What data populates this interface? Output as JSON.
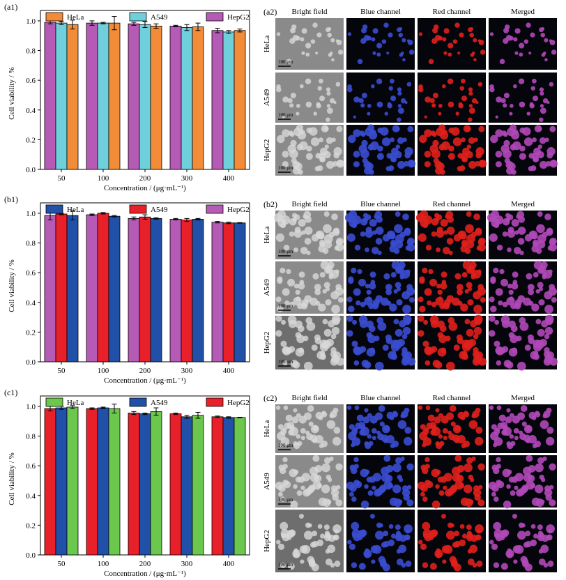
{
  "colors": {
    "orange": "#f28c38",
    "cyan": "#6fd0dc",
    "purple": "#b55bb5",
    "blue": "#2150a8",
    "red": "#e8202a",
    "green": "#6cc84c",
    "micro_bg": "#05050c",
    "bright_bg": "#8a8a8a",
    "blue_cell": "#3a4cd0",
    "red_cell": "#e0201c",
    "merged_cell": "#b048b8"
  },
  "chart_data": [
    {
      "panel": "(a1)",
      "type": "bar",
      "xlabel": "Concentration / (μg·mL⁻¹)",
      "ylabel": "Cell viability / %",
      "categories": [
        "50",
        "100",
        "200",
        "300",
        "400"
      ],
      "ylim": [
        0,
        1.07
      ],
      "yticks": [
        0.0,
        0.2,
        0.4,
        0.6,
        0.8,
        1.0
      ],
      "ytick_labels": [
        "0.0",
        "0.2",
        "0.4",
        "0.6",
        "0.8",
        "1.0"
      ],
      "series_order": [
        "HepG2",
        "A549",
        "HeLa"
      ],
      "legend": [
        {
          "name": "HeLa",
          "color": "#f28c38"
        },
        {
          "name": "A549",
          "color": "#6fd0dc"
        },
        {
          "name": "HepG2",
          "color": "#b55bb5"
        }
      ],
      "series": [
        {
          "name": "HepG2",
          "color": "#b55bb5",
          "values": [
            0.99,
            0.985,
            0.98,
            0.965,
            0.935
          ],
          "errors": [
            0.01,
            0.015,
            0.01,
            0.005,
            0.015
          ]
        },
        {
          "name": "A549",
          "color": "#6fd0dc",
          "values": [
            0.985,
            0.985,
            0.975,
            0.955,
            0.925
          ],
          "errors": [
            0.01,
            0.005,
            0.02,
            0.02,
            0.01
          ]
        },
        {
          "name": "HeLa",
          "color": "#f28c38",
          "values": [
            0.975,
            0.985,
            0.965,
            0.96,
            0.935
          ],
          "errors": [
            0.03,
            0.045,
            0.015,
            0.025,
            0.01
          ]
        }
      ]
    },
    {
      "panel": "(b1)",
      "type": "bar",
      "xlabel": "Concentration / (μg·mL⁻¹)",
      "ylabel": "Cell viability / %",
      "categories": [
        "50",
        "100",
        "200",
        "300",
        "400"
      ],
      "ylim": [
        0,
        1.07
      ],
      "yticks": [
        0.0,
        0.2,
        0.4,
        0.6,
        0.8,
        1.0
      ],
      "ytick_labels": [
        "0.0",
        "0.2",
        "0.4",
        "0.6",
        "0.8",
        "1.0"
      ],
      "series_order": [
        "HepG2",
        "A549",
        "HeLa"
      ],
      "legend": [
        {
          "name": "HeLa",
          "color": "#2150a8"
        },
        {
          "name": "A549",
          "color": "#e8202a"
        },
        {
          "name": "HepG2",
          "color": "#b55bb5"
        }
      ],
      "series": [
        {
          "name": "HepG2",
          "color": "#b55bb5",
          "values": [
            0.985,
            0.99,
            0.965,
            0.96,
            0.94
          ],
          "errors": [
            0.03,
            0.005,
            0.01,
            0.005,
            0.005
          ]
        },
        {
          "name": "A549",
          "color": "#e8202a",
          "values": [
            0.995,
            1.0,
            0.975,
            0.955,
            0.935
          ],
          "errors": [
            0.005,
            0.005,
            0.015,
            0.01,
            0.005
          ]
        },
        {
          "name": "HeLa",
          "color": "#2150a8",
          "values": [
            0.985,
            0.98,
            0.965,
            0.96,
            0.935
          ],
          "errors": [
            0.03,
            0.005,
            0.005,
            0.005,
            0.002
          ]
        }
      ]
    },
    {
      "panel": "(c1)",
      "type": "bar",
      "xlabel": "Concentration / (μg·mL⁻¹)",
      "ylabel": "Cell viability / %",
      "categories": [
        "50",
        "100",
        "200",
        "300",
        "400"
      ],
      "ylim": [
        0,
        1.07
      ],
      "yticks": [
        0.0,
        0.2,
        0.4,
        0.6,
        0.8,
        1.0
      ],
      "ytick_labels": [
        "0.0",
        "0.2",
        "0.4",
        "0.6",
        "0.8",
        "1.0"
      ],
      "series_order": [
        "HepG2",
        "A549",
        "HeLa"
      ],
      "legend": [
        {
          "name": "HeLa",
          "color": "#6cc84c"
        },
        {
          "name": "A549",
          "color": "#2150a8"
        },
        {
          "name": "HepG2",
          "color": "#e8202a"
        }
      ],
      "series": [
        {
          "name": "HepG2",
          "color": "#e8202a",
          "values": [
            0.985,
            0.985,
            0.955,
            0.95,
            0.93
          ],
          "errors": [
            0.015,
            0.005,
            0.01,
            0.005,
            0.005
          ]
        },
        {
          "name": "A549",
          "color": "#2150a8",
          "values": [
            0.99,
            0.99,
            0.95,
            0.93,
            0.925
          ],
          "errors": [
            0.01,
            0.005,
            0.005,
            0.01,
            0.005
          ]
        },
        {
          "name": "HeLa",
          "color": "#6cc84c",
          "values": [
            0.995,
            0.985,
            0.965,
            0.94,
            0.925
          ],
          "errors": [
            0.01,
            0.03,
            0.025,
            0.02,
            0.002
          ]
        }
      ]
    }
  ],
  "micrographs": [
    {
      "panel": "(a2)",
      "columns": [
        "Bright field",
        "Blue channel",
        "Red channel",
        "Merged"
      ],
      "rows": [
        "HeLa",
        "A549",
        "HepG2"
      ],
      "scale_bar": "100 μm",
      "style": "sparse"
    },
    {
      "panel": "(b2)",
      "columns": [
        "Bright field",
        "Blue channel",
        "Red channel",
        "Merged"
      ],
      "rows": [
        "HeLa",
        "A549",
        "HepG2"
      ],
      "scale_bar": "100 μm",
      "style": "dense"
    },
    {
      "panel": "(c2)",
      "columns": [
        "Bright field",
        "Blue channel",
        "Red channel",
        "Merged"
      ],
      "rows": [
        "HeLa",
        "A549",
        "HepG2"
      ],
      "scale_bar": "100 μm",
      "style": "dense"
    }
  ]
}
